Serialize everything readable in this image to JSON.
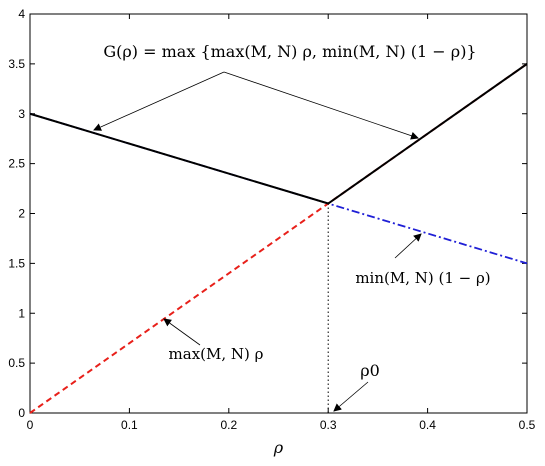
{
  "chart_data": {
    "type": "line",
    "xlabel": "ρ",
    "ylabel": "",
    "xlim": [
      0,
      0.5
    ],
    "ylim": [
      0,
      4
    ],
    "x_ticks": [
      "0",
      "0.1",
      "0.2",
      "0.3",
      "0.4",
      "0.5"
    ],
    "y_ticks": [
      "0",
      "0.5",
      "1",
      "1.5",
      "2",
      "2.5",
      "3",
      "3.5",
      "4"
    ],
    "grid": false,
    "series": [
      {
        "name": "G(ρ) = max{max(M,N) ρ, min(M,N) (1 − ρ)}",
        "color": "#000000",
        "style": "solid",
        "x": [
          0,
          0.3,
          0.5
        ],
        "y": [
          3,
          2.1,
          3.5
        ]
      },
      {
        "name": "max(M,N) ρ",
        "color": "#e8201a",
        "style": "dashed",
        "x": [
          0,
          0.5
        ],
        "y": [
          0,
          3.5
        ]
      },
      {
        "name": "min(M,N) (1 − ρ)",
        "color": "#1f1fd6",
        "style": "dashdot",
        "x": [
          0,
          0.5
        ],
        "y": [
          3,
          1.5
        ]
      }
    ],
    "vertical_marker": {
      "x": 0.3,
      "y_from": 0,
      "y_to": 2.1,
      "style": "dotted"
    },
    "annotations": {
      "g_label": "G(ρ) = max {max(M, N) ρ, min(M, N) (1 − ρ)}",
      "max_label": "max(M, N) ρ",
      "min_label": "min(M, N) (1 − ρ)",
      "rho0_label": "ρ0"
    }
  }
}
